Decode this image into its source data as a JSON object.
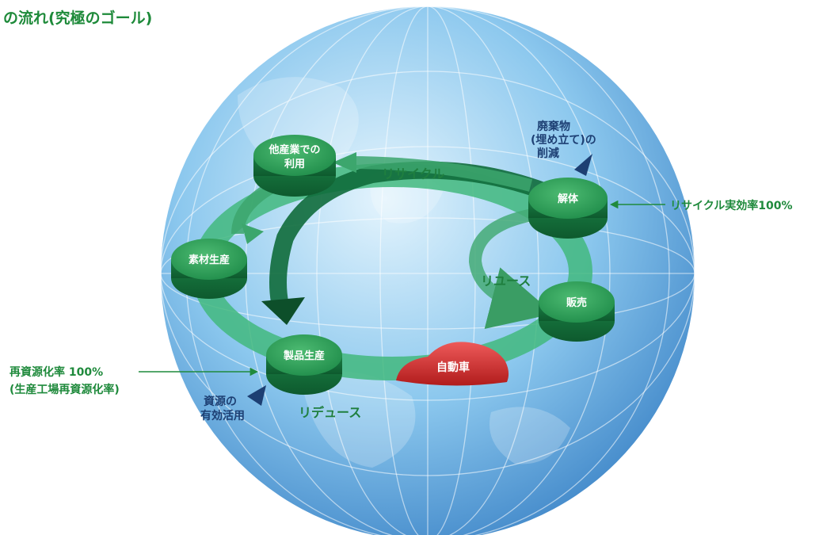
{
  "title": "の流れ(究極のゴール)",
  "colors": {
    "globe_light": "#e4f4fd",
    "globe_mid": "#8cc8ee",
    "globe_dark": "#3f86c8",
    "ring": "#42b97e",
    "node_top": "#2ea05b",
    "node_side": "#14703c",
    "label_green": "#1f8a3c",
    "label_navy": "#1d3f73",
    "car": "#d43030"
  },
  "nodes": {
    "other_industry": [
      "他産業での",
      "利用"
    ],
    "material": "素材生産",
    "product": "製品生産",
    "dismantle": "解体",
    "sales": "販売"
  },
  "car": "自動車",
  "arrows": {
    "recycle": "リサイクル",
    "reuse": "リユース",
    "reduce": "リデュース"
  },
  "annotations": {
    "waste_reduction": [
      "廃棄物",
      "(埋め立て)の",
      "削減"
    ],
    "recycle_rate": "リサイクル実効率100%",
    "reuse_rate": [
      "再資源化率 100%",
      "(生産工場再資源化率)"
    ],
    "resource_use": [
      "資源の",
      "有効活用"
    ]
  }
}
